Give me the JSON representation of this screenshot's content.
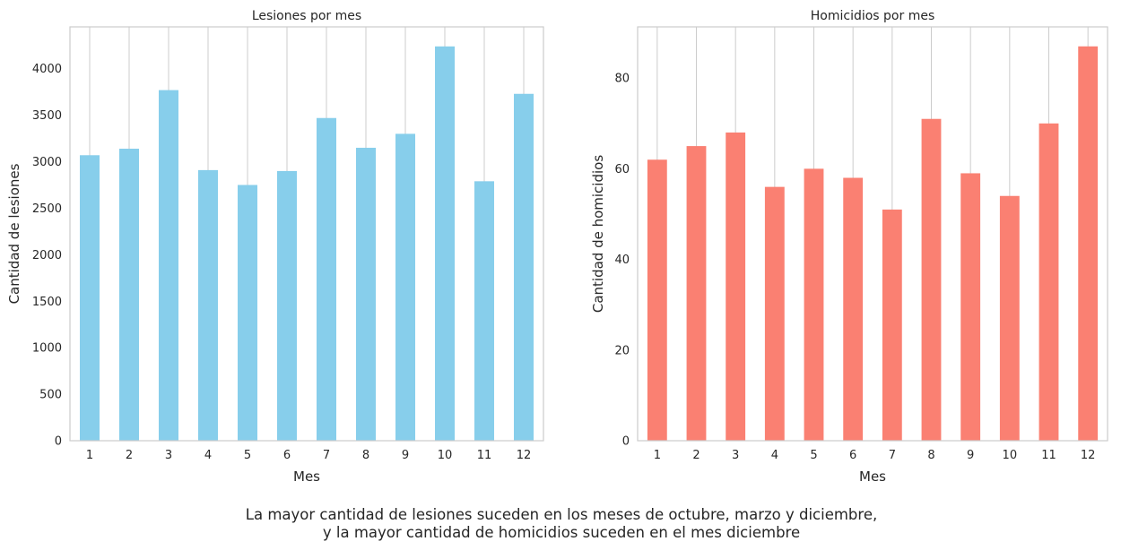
{
  "chart_data": [
    {
      "type": "bar",
      "title": "Lesiones por mes",
      "xlabel": "Mes",
      "ylabel": "Cantidad de lesiones",
      "categories": [
        "1",
        "2",
        "3",
        "4",
        "5",
        "6",
        "7",
        "8",
        "9",
        "10",
        "11",
        "12"
      ],
      "values": [
        3070,
        3140,
        3770,
        2910,
        2750,
        2900,
        3470,
        3150,
        3300,
        4240,
        2790,
        3730
      ],
      "ylim": [
        0,
        4450
      ],
      "yticks": [
        0,
        500,
        1000,
        1500,
        2000,
        2500,
        3000,
        3500,
        4000
      ],
      "color": "#87CEEB",
      "grid": "vertical"
    },
    {
      "type": "bar",
      "title": "Homicidios por mes",
      "xlabel": "Mes",
      "ylabel": "Cantidad de homicidios",
      "categories": [
        "1",
        "2",
        "3",
        "4",
        "5",
        "6",
        "7",
        "8",
        "9",
        "10",
        "11",
        "12"
      ],
      "values": [
        62,
        65,
        68,
        56,
        60,
        58,
        51,
        71,
        59,
        54,
        70,
        87
      ],
      "ylim": [
        0,
        91.3
      ],
      "yticks": [
        0,
        20,
        40,
        60,
        80
      ],
      "color": "#FA8072",
      "grid": "vertical"
    }
  ],
  "caption": {
    "line1": "La mayor cantidad de lesiones suceden en los meses de octubre, marzo y diciembre,",
    "line2": "y la mayor cantidad de homicidios suceden en el mes diciembre"
  }
}
